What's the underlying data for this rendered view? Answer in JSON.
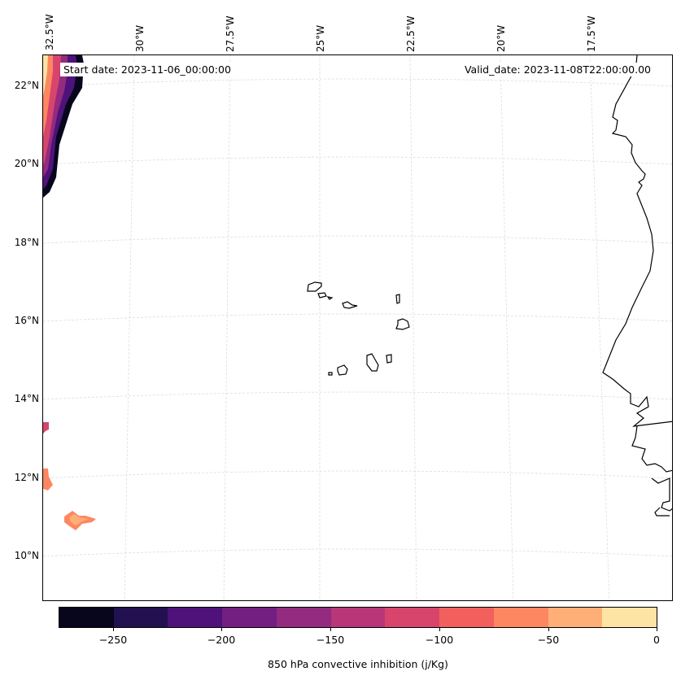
{
  "map": {
    "start_date": "Start date: 2023-11-06_00:00:00",
    "valid_date": "Valid_date: 2023-11-08T22:00:00.00",
    "lon_labels": [
      "32.5°W",
      "30°W",
      "27.5°W",
      "25°W",
      "22.5°W",
      "20°W",
      "17.5°W"
    ],
    "lat_labels": [
      "22°N",
      "20°N",
      "18°N",
      "16°N",
      "14°N",
      "12°N",
      "10°N"
    ]
  },
  "colorbar": {
    "label": "850 hPa convective inhibition (j/Kg)",
    "tick_labels": [
      "−250",
      "−200",
      "−150",
      "−100",
      "−50",
      "0"
    ],
    "levels": [
      -275,
      -250,
      -225,
      -200,
      -175,
      -150,
      -125,
      -100,
      -75,
      -50,
      -25,
      0
    ],
    "colors": [
      "#07061c",
      "#221150",
      "#4f127b",
      "#721f81",
      "#932b80",
      "#b73779",
      "#d8456c",
      "#f1605d",
      "#fc8761",
      "#feae77",
      "#fde3a4"
    ]
  },
  "style": {
    "coast": "#000000",
    "grid": "#dddddd"
  }
}
